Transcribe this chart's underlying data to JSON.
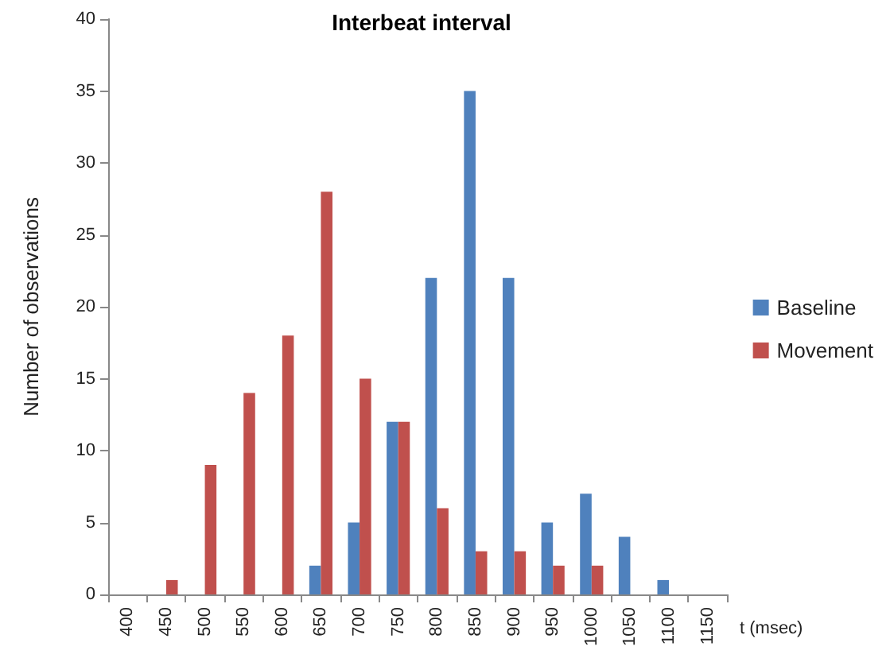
{
  "chart_data": {
    "type": "bar",
    "title": "Interbeat interval",
    "xlabel": "t (msec)",
    "ylabel": "Number of observations",
    "categories": [
      "400",
      "450",
      "500",
      "550",
      "600",
      "650",
      "700",
      "750",
      "800",
      "850",
      "900",
      "950",
      "1000",
      "1050",
      "1100",
      "1150"
    ],
    "series": [
      {
        "name": "Baseline",
        "color": "#4f81bd",
        "values": [
          0,
          0,
          0,
          0,
          0,
          2,
          5,
          12,
          22,
          35,
          22,
          5,
          7,
          4,
          1,
          0
        ]
      },
      {
        "name": "Movement",
        "color": "#c0504d",
        "values": [
          0,
          1,
          9,
          14,
          18,
          28,
          15,
          12,
          6,
          3,
          3,
          2,
          2,
          0,
          0,
          0
        ]
      }
    ],
    "ylim": [
      0,
      40
    ],
    "yticks": [
      0,
      5,
      10,
      15,
      20,
      25,
      30,
      35,
      40
    ],
    "grid": false,
    "legend": "right"
  }
}
